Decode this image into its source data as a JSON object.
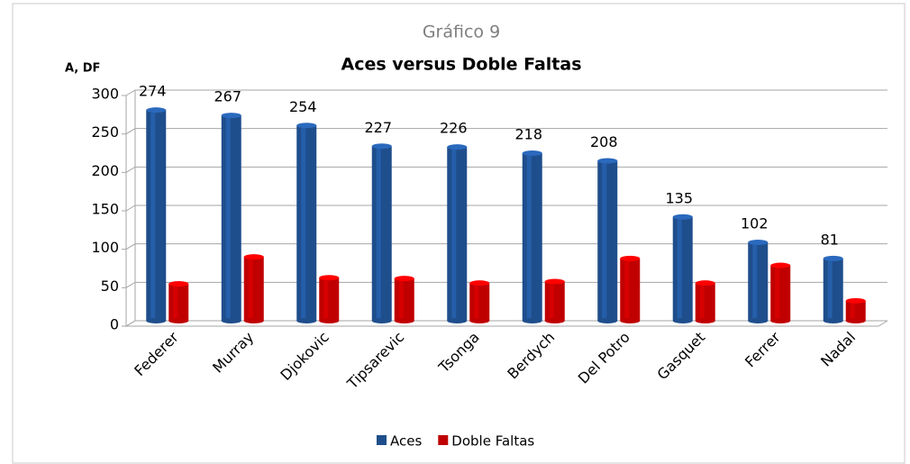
{
  "chart_data": {
    "type": "bar",
    "title": "Gráfico 9",
    "subtitle": "Aces versus Doble Faltas",
    "y_label": "A, DF",
    "categories": [
      "Federer",
      "Murray",
      "Djokovic",
      "Tipsarevic",
      "Tsonga",
      "Berdych",
      "Del Potro",
      "Gasquet",
      "Ferrer",
      "Nadal"
    ],
    "series": [
      {
        "name": "Aces",
        "color": "#1f4e8c",
        "show_labels": true,
        "values": [
          274,
          267,
          254,
          227,
          226,
          218,
          208,
          135,
          102,
          81
        ]
      },
      {
        "name": "Doble Faltas",
        "color": "#c00000",
        "show_labels": false,
        "values": [
          48,
          83,
          56,
          55,
          49,
          51,
          81,
          49,
          72,
          26
        ]
      }
    ],
    "ylim": [
      0,
      300
    ],
    "yticks": [
      0,
      50,
      100,
      150,
      200,
      250,
      300
    ],
    "grid": true,
    "legend": "bottom"
  }
}
